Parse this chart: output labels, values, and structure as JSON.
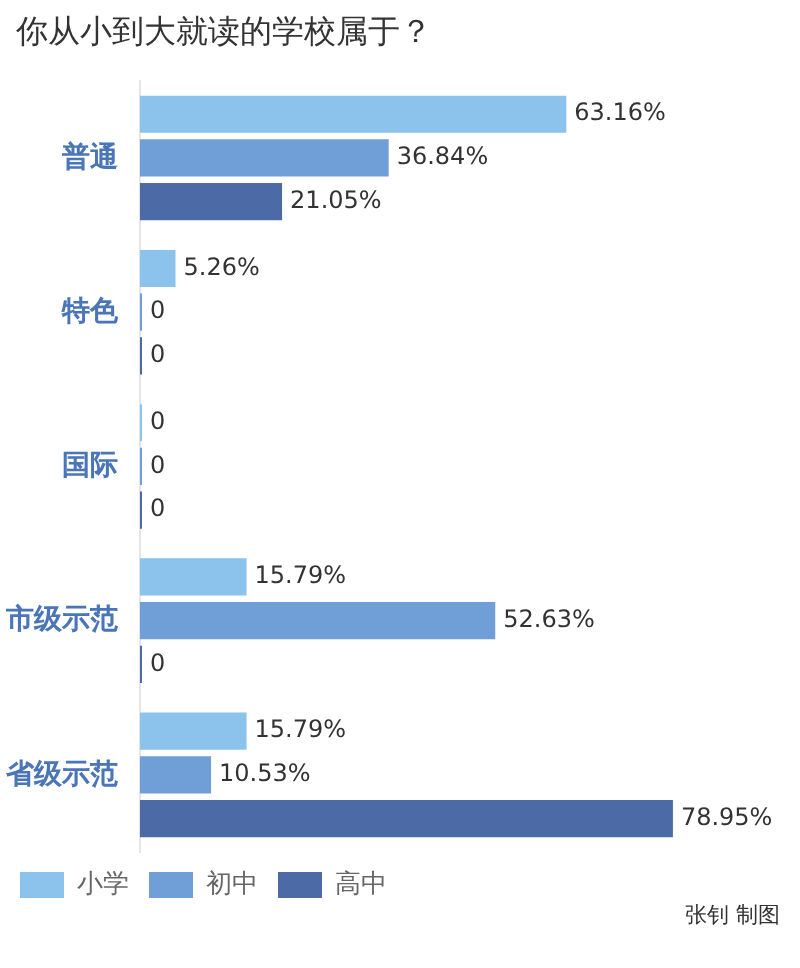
{
  "chart_data": {
    "type": "bar",
    "orientation": "horizontal",
    "title": "你从小到大就读的学校属于？",
    "categories": [
      "普通",
      "特色",
      "国际",
      "市级示范",
      "省级示范"
    ],
    "series": [
      {
        "name": "小学",
        "color": "#8cc3ec",
        "values": [
          63.16,
          5.26,
          0,
          15.79,
          15.79
        ],
        "value_labels": [
          "63.16%",
          "5.26%",
          "0",
          "15.79%",
          "15.79%"
        ]
      },
      {
        "name": "初中",
        "color": "#6f9fd6",
        "values": [
          36.84,
          0,
          0,
          52.63,
          10.53
        ],
        "value_labels": [
          "36.84%",
          "0",
          "0",
          "52.63%",
          "10.53%"
        ]
      },
      {
        "name": "高中",
        "color": "#4c6aa6",
        "values": [
          21.05,
          0,
          0,
          0,
          78.95
        ],
        "value_labels": [
          "21.05%",
          "0",
          "0",
          "0",
          "78.95%"
        ]
      }
    ],
    "tick_labels": "y",
    "grid": false,
    "legend": "bottom",
    "annotations": [
      "张钊 制图"
    ]
  }
}
